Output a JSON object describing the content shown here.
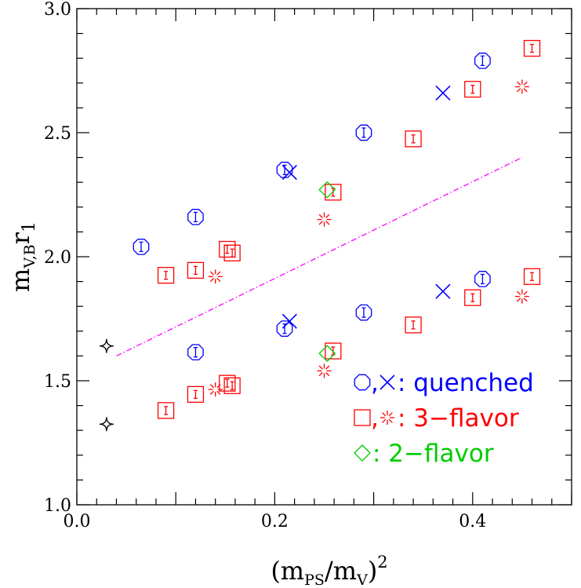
{
  "chart_data": {
    "type": "scatter",
    "xlabel": {
      "main": "(m",
      "sub1": "PS",
      "mid": "/m",
      "sub2": "V",
      "close": ")",
      "sup": "2"
    },
    "ylabel": {
      "main": "m",
      "sub": "V,B",
      "r": "r",
      "rsub": "1"
    },
    "xlim": [
      0.0,
      0.5
    ],
    "ylim": [
      1.0,
      3.0
    ],
    "x_ticks": [
      "0.0",
      "0.2",
      "0.4"
    ],
    "y_ticks": [
      "1.0",
      "1.5",
      "2.0",
      "2.5",
      "3.0"
    ],
    "grid": false,
    "legend_position": "bottom-right",
    "legend": [
      {
        "symbols": [
          "octagon",
          "cross"
        ],
        "text": ": quenched",
        "color": "#0000ff"
      },
      {
        "symbols": [
          "square",
          "burst"
        ],
        "text": ": 3−flavor",
        "color": "#ff0000"
      },
      {
        "symbols": [
          "diamond"
        ],
        "text": ": 2−flavor",
        "color": "#00cc00"
      }
    ],
    "colors": {
      "quenched": "#0000ff",
      "three_flavor": "#ff0000",
      "two_flavor": "#00cc00",
      "physical": "#000000",
      "line": "#ff00ff"
    },
    "series": [
      {
        "key": "quenched_octagon",
        "symbol": "octagon",
        "color": "#0000ff",
        "points": [
          [
            0.065,
            2.04
          ],
          [
            0.12,
            2.16
          ],
          [
            0.21,
            2.35
          ],
          [
            0.29,
            2.5
          ],
          [
            0.41,
            2.79
          ],
          [
            0.12,
            1.615
          ],
          [
            0.21,
            1.71
          ],
          [
            0.29,
            1.775
          ],
          [
            0.41,
            1.91
          ]
        ]
      },
      {
        "key": "quenched_cross",
        "symbol": "cross",
        "color": "#0000ff",
        "points": [
          [
            0.215,
            2.34
          ],
          [
            0.37,
            2.66
          ],
          [
            0.215,
            1.74
          ],
          [
            0.37,
            1.86
          ]
        ]
      },
      {
        "key": "three_flavor_square",
        "symbol": "square",
        "color": "#ff0000",
        "points": [
          [
            0.09,
            1.925
          ],
          [
            0.12,
            1.945
          ],
          [
            0.152,
            2.03
          ],
          [
            0.157,
            2.015
          ],
          [
            0.259,
            2.26
          ],
          [
            0.34,
            2.475
          ],
          [
            0.4,
            2.675
          ],
          [
            0.46,
            2.84
          ],
          [
            0.09,
            1.38
          ],
          [
            0.12,
            1.445
          ],
          [
            0.152,
            1.49
          ],
          [
            0.157,
            1.48
          ],
          [
            0.259,
            1.62
          ],
          [
            0.34,
            1.725
          ],
          [
            0.4,
            1.835
          ],
          [
            0.46,
            1.92
          ]
        ]
      },
      {
        "key": "three_flavor_burst",
        "symbol": "burst",
        "color": "#ff0000",
        "points": [
          [
            0.14,
            1.92
          ],
          [
            0.25,
            2.15
          ],
          [
            0.45,
            2.685
          ],
          [
            0.14,
            1.465
          ],
          [
            0.25,
            1.54
          ],
          [
            0.45,
            1.84
          ]
        ]
      },
      {
        "key": "two_flavor_diamond",
        "symbol": "diamond",
        "color": "#00cc00",
        "points": [
          [
            0.253,
            2.27
          ],
          [
            0.253,
            1.61
          ]
        ]
      },
      {
        "key": "physical_star",
        "symbol": "star",
        "color": "#000000",
        "points": [
          [
            0.03,
            1.64
          ],
          [
            0.03,
            1.325
          ]
        ]
      }
    ],
    "line": {
      "style": "dash-dot",
      "color": "#ff00ff",
      "x": [
        0.04,
        0.45
      ],
      "y": [
        1.6,
        2.4
      ]
    }
  }
}
